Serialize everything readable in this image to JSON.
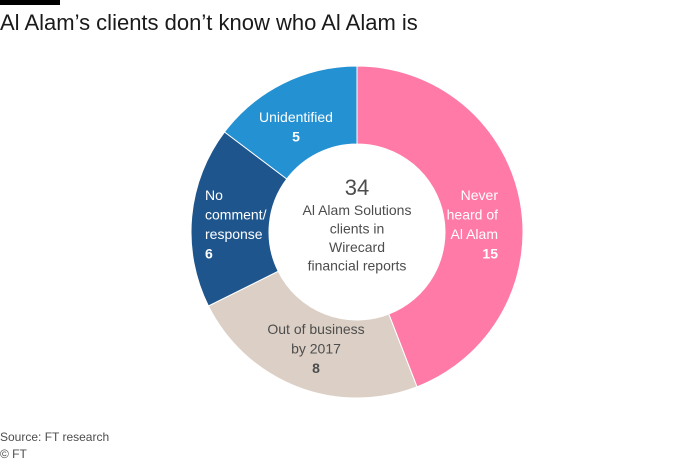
{
  "title": "Al Alam’s clients don’t know who Al Alam is",
  "source": "Source: FT research",
  "credit": "© FT",
  "chart_data": {
    "type": "pie",
    "style": "donut",
    "title": "Al Alam’s clients don’t know who Al Alam is",
    "total": 34,
    "center_label": [
      "34",
      "Al Alam Solutions",
      "clients in",
      "Wirecard",
      "financial reports"
    ],
    "slices": [
      {
        "label": [
          "Never",
          "heard of",
          "Al Alam"
        ],
        "value": 15,
        "color": "#ff7aa6",
        "text_color": "#ffffff"
      },
      {
        "label": [
          "Out of business",
          "by 2017"
        ],
        "value": 8,
        "color": "#dcd0c6",
        "text_color": "#4d4d4d"
      },
      {
        "label": [
          "No",
          "comment/",
          "response"
        ],
        "value": 6,
        "color": "#1f558d",
        "text_color": "#ffffff"
      },
      {
        "label": [
          "Unidentified"
        ],
        "value": 5,
        "color": "#2491d2",
        "text_color": "#ffffff"
      }
    ]
  }
}
